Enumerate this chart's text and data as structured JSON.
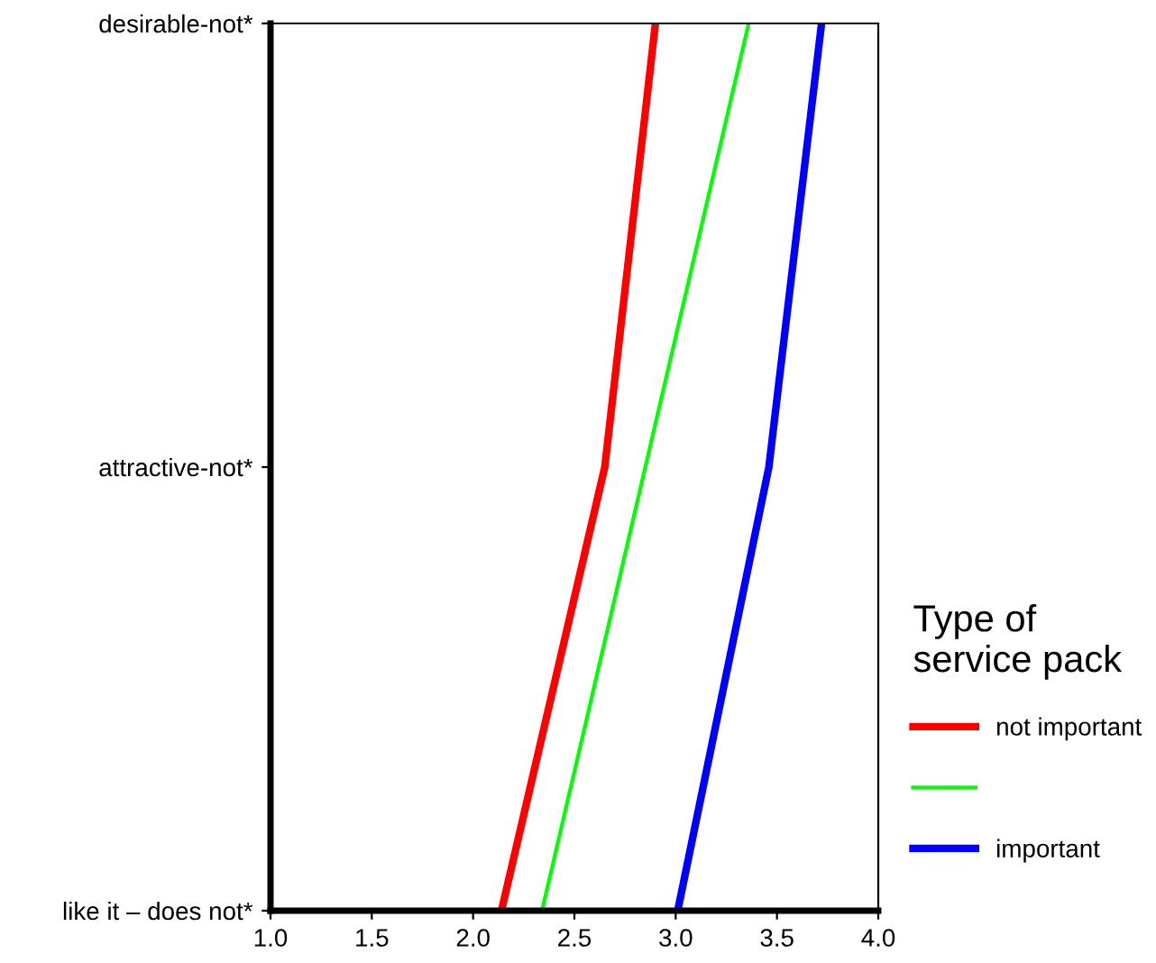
{
  "chart_data": {
    "type": "line",
    "orientation": "horizontal",
    "categories": [
      "desirable-not*",
      "attractive-not*",
      "like it – does not*"
    ],
    "series": [
      {
        "name": "not important",
        "color": "#ff0000",
        "values": [
          2.9,
          2.65,
          2.14
        ]
      },
      {
        "color": "#00ff00",
        "values": [
          3.36,
          2.85,
          2.34
        ]
      },
      {
        "name": "important",
        "color": "#0000ff",
        "values": [
          3.72,
          3.46,
          3.01
        ]
      }
    ],
    "xlim": [
      1,
      4
    ],
    "xticks": [
      {
        "value": 1,
        "label": "1.0"
      },
      {
        "value": 1.5,
        "label": "1.5"
      },
      {
        "value": 2,
        "label": "2.0"
      },
      {
        "value": 2.5,
        "label": "2.5"
      },
      {
        "value": 3,
        "label": "3.0"
      },
      {
        "value": 3.5,
        "label": "3.5"
      },
      {
        "value": 4,
        "label": "4.0"
      }
    ],
    "legend_title": "Type of\nservice pack",
    "legend": "right",
    "grid": false,
    "marker": "none",
    "line_style": "solid"
  }
}
